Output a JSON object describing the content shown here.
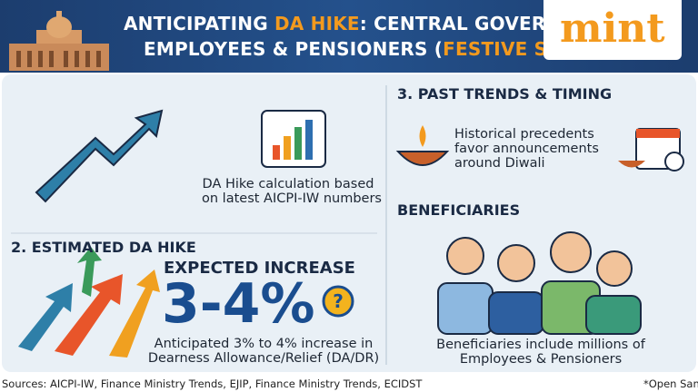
{
  "header": {
    "title_line1": [
      "ANTICIPATING ",
      "DA HIKE",
      ": CENTRAL GOVERNM"
    ],
    "title_line2": [
      "EMPLOYEES & PENSIONERS (",
      "FESTIVE SEASO"
    ],
    "logo": "mint"
  },
  "calculation": {
    "lines": [
      "DA Hike calculation based",
      "on latest AICPI-IW numbers"
    ]
  },
  "estimate": {
    "heading": "2. ESTIMATED DA HIKE",
    "label": "EXPECTED INCREASE",
    "figure": "3-4%",
    "lines": [
      "Anticipated 3% to 4% increase in",
      "Dearness Allowance/Relief (DA/DR)"
    ]
  },
  "trends": {
    "heading": "3. PAST TRENDS & TIMING",
    "lines": [
      "Historical precedents",
      "favor announcements",
      "around Diwali"
    ]
  },
  "beneficiaries": {
    "heading": "BENEFICIARIES",
    "lines": [
      "Beneficiaries include millions of",
      "Employees & Pensioners"
    ]
  },
  "footer": {
    "sources": "Sources: AICPI-IW, Finance Ministry Trends, EJIP, Finance Ministry Trends, ECIDST",
    "note": "*Open Sani"
  }
}
